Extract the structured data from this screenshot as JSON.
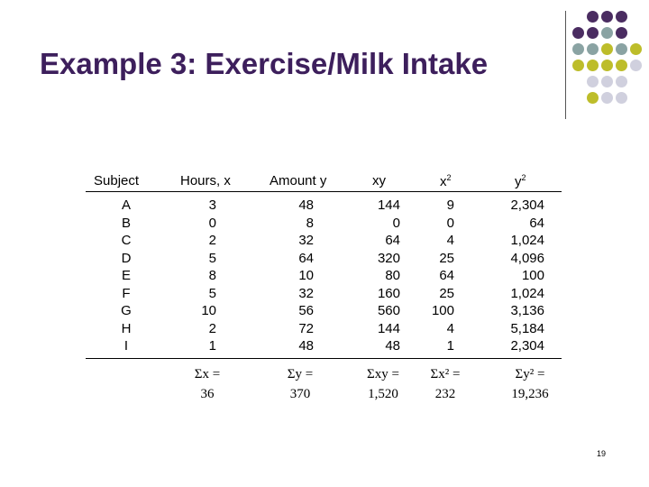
{
  "title": "Example 3: Exercise/Milk Intake",
  "page_number": "19",
  "table": {
    "headers": {
      "subject": "Subject",
      "hours": "Hours, x",
      "amount": "Amount y",
      "xy": "xy",
      "x2": "x2",
      "y2": "y2"
    },
    "subjects": [
      "A",
      "B",
      "C",
      "D",
      "E",
      "F",
      "G",
      "H",
      "I"
    ],
    "hours": [
      "3",
      "0",
      "2",
      "5",
      "8",
      "5",
      "10",
      "2",
      "1"
    ],
    "amount": [
      "48",
      "8",
      "32",
      "64",
      "10",
      "32",
      "56",
      "72",
      "48"
    ],
    "xy": [
      "144",
      "0",
      "64",
      "320",
      "80",
      "160",
      "560",
      "144",
      "48"
    ],
    "x2": [
      "9",
      "0",
      "4",
      "25",
      "64",
      "25",
      "100",
      "4",
      "1"
    ],
    "y2": [
      "2,304",
      "64",
      "1,024",
      "4,096",
      "100",
      "1,024",
      "3,136",
      "5,184",
      "2,304"
    ]
  },
  "sums": {
    "x": {
      "label": "Σx =",
      "value": "36"
    },
    "y": {
      "label": "Σy =",
      "value": "370"
    },
    "xy": {
      "label": "Σxy =",
      "value": "1,520"
    },
    "x2": {
      "label": "Σx² =",
      "value": "232"
    },
    "y2": {
      "label": "Σy² =",
      "value": "19,236"
    }
  },
  "decor_colors": {
    "purple": "#4a2c61",
    "teal": "#8aa3a3",
    "olive": "#bdbd2a",
    "lavender": "#d0d0de"
  }
}
